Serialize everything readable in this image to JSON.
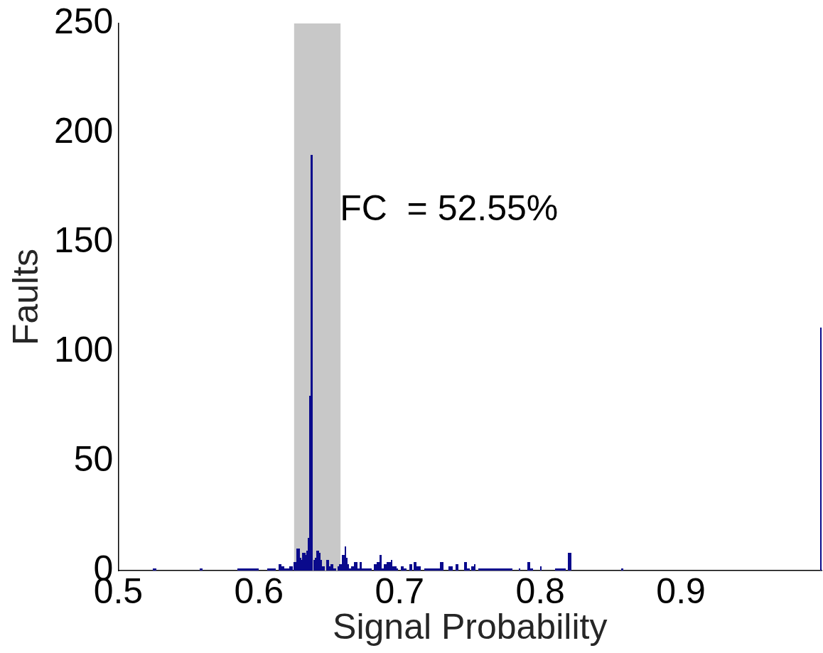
{
  "chart_data": {
    "type": "histogram",
    "xlabel": "Signal Probability",
    "ylabel": "Faults",
    "color": "#0a0a8c",
    "bins": [
      0.525,
      0.527,
      0.558,
      0.56,
      0.585,
      0.6,
      0.606,
      0.612,
      0.614,
      0.616,
      0.618,
      0.622,
      0.624,
      0.625,
      0.627,
      0.629,
      0.63,
      0.631,
      0.633,
      0.634,
      0.635,
      0.636,
      0.637,
      0.638,
      0.639,
      0.64,
      0.641,
      0.643,
      0.644,
      0.645,
      0.647,
      0.648,
      0.65,
      0.651,
      0.653,
      0.655,
      0.656,
      0.657,
      0.659,
      0.661,
      0.662,
      0.663,
      0.664,
      0.666,
      0.668,
      0.67,
      0.672,
      0.673,
      0.68,
      0.682,
      0.684,
      0.686,
      0.687,
      0.689,
      0.691,
      0.694,
      0.695,
      0.698,
      0.699,
      0.701,
      0.703,
      0.705,
      0.707,
      0.709,
      0.71,
      0.712,
      0.715,
      0.718,
      0.729,
      0.731,
      0.735,
      0.738,
      0.74,
      0.742,
      0.746,
      0.748,
      0.75,
      0.751,
      0.753,
      0.754,
      0.756,
      0.78,
      0.785,
      0.786,
      0.791,
      0.793,
      0.795,
      0.8,
      0.801,
      0.811,
      0.818,
      0.82,
      0.822,
      0.858,
      0.859,
      0.999,
      1.0
    ],
    "values": [
      1,
      0,
      1,
      0,
      1,
      0,
      1,
      0,
      3,
      2,
      1,
      2,
      0,
      4,
      10,
      6,
      5,
      8,
      7,
      9,
      15,
      80,
      190,
      0,
      5,
      6,
      9,
      8,
      5,
      2,
      0,
      5,
      2,
      3,
      1,
      0,
      2,
      3,
      7,
      11,
      6,
      3,
      1,
      2,
      4,
      1,
      4,
      1,
      0,
      3,
      4,
      7,
      1,
      3,
      4,
      5,
      2,
      1,
      0,
      2,
      1,
      0,
      3,
      0,
      4,
      2,
      0,
      1,
      4,
      0,
      2,
      0,
      3,
      0,
      4,
      1,
      0,
      2,
      3,
      0,
      1,
      0,
      1,
      0,
      4,
      1,
      0,
      2,
      0,
      1,
      0,
      8,
      0,
      1,
      0,
      111
    ],
    "xlim": [
      0.5,
      1.0
    ],
    "xticks": [
      0.5,
      0.6,
      0.7,
      0.8,
      0.9
    ],
    "ylim": [
      0,
      250
    ],
    "yticks": [
      0,
      50,
      100,
      150,
      200,
      250
    ],
    "bands": [
      {
        "axis": "x",
        "from": 0.625,
        "to": 0.658,
        "color": "#c8c8c8"
      }
    ],
    "annotations": [
      "FC  = 52.55%"
    ]
  }
}
